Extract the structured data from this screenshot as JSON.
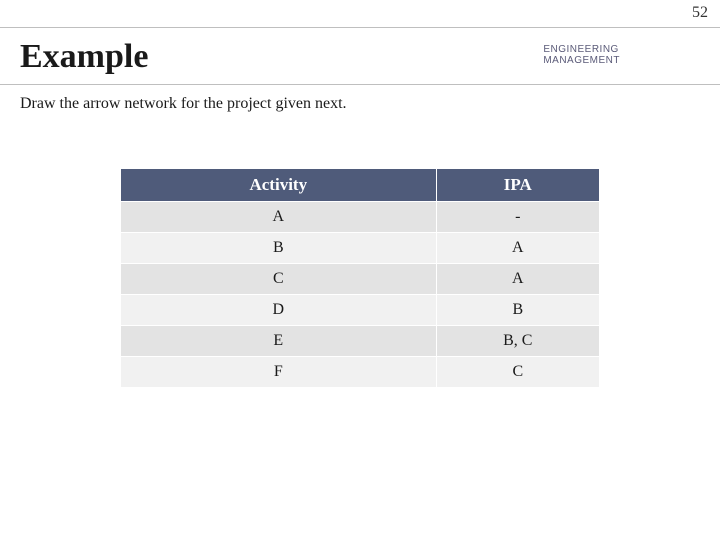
{
  "page_number": "52",
  "title": "Example",
  "subtitle_line1": "ENGINEERING",
  "subtitle_line2": "MANAGEMENT",
  "instruction": "Draw the arrow network for the project given next.",
  "table": {
    "columns": [
      "Activity",
      "IPA"
    ],
    "rows": [
      [
        "A",
        "-"
      ],
      [
        "B",
        "A"
      ],
      [
        "C",
        "A"
      ],
      [
        "D",
        "B"
      ],
      [
        "E",
        "B, C"
      ],
      [
        "F",
        "C"
      ]
    ],
    "header_bg": "#4f5b7a",
    "header_fg": "#ffffff",
    "row_odd_bg": "#e3e3e3",
    "row_even_bg": "#f1f1f1",
    "font_size": 16
  }
}
